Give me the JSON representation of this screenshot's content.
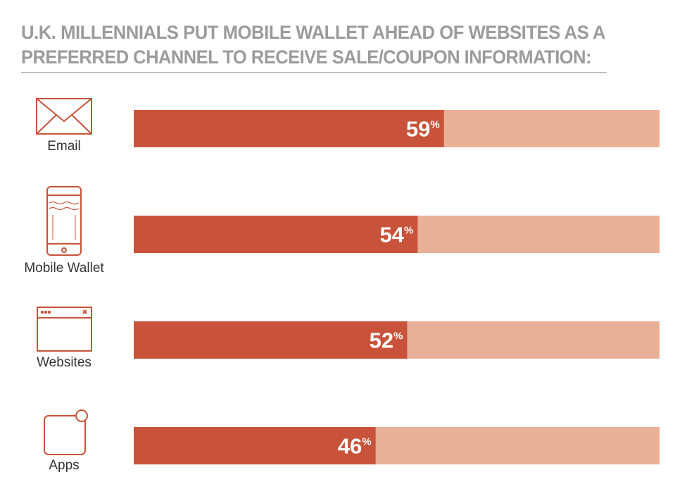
{
  "chart_data": {
    "type": "bar",
    "title": [
      "U.K. MILLENNIALS PUT MOBILE WALLET AHEAD OF WEBSITES AS A",
      "PREFERRED CHANNEL TO RECEIVE SALE/COUPON INFORMATION:"
    ],
    "categories": [
      "Email",
      "Mobile Wallet",
      "Websites",
      "Apps"
    ],
    "values": [
      59,
      54,
      52,
      46
    ],
    "value_labels": [
      "59%",
      "54%",
      "52%",
      "46%"
    ],
    "color": "#c8533a",
    "track_color": "#e8b096",
    "xlim": [
      0,
      100
    ]
  }
}
